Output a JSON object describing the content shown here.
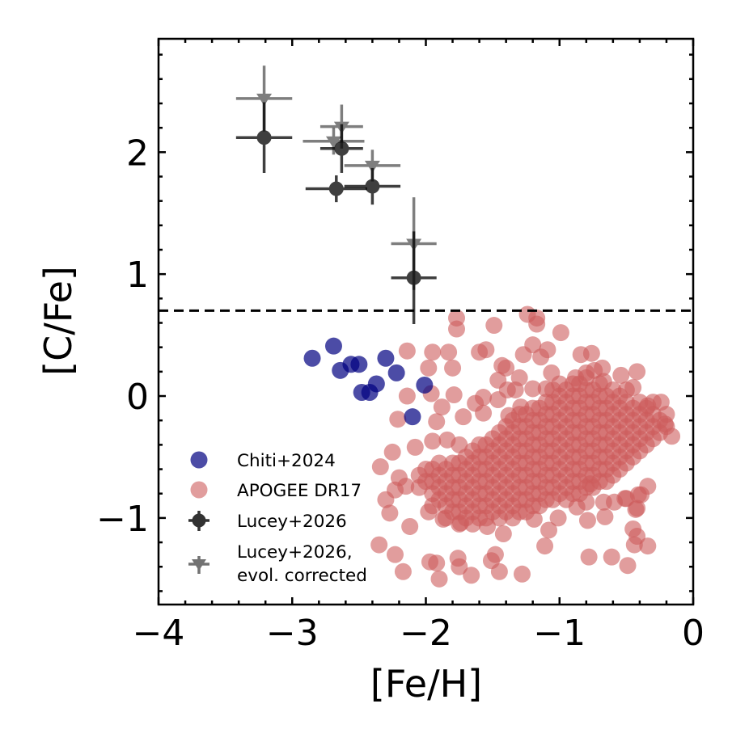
{
  "chart_data": {
    "type": "scatter",
    "title": "",
    "xlabel": "[Fe/H]",
    "ylabel": "[C/Fe]",
    "xlim": [
      -4,
      0
    ],
    "ylim": [
      -1.71,
      2.93
    ],
    "x_ticks": [
      -4,
      -3,
      -2,
      -1,
      0
    ],
    "x_tick_labels": [
      "−4",
      "−3",
      "−2",
      "−1",
      "0"
    ],
    "y_ticks": [
      -1,
      0,
      1,
      2
    ],
    "y_tick_labels": [
      "−1",
      "0",
      "1",
      "2"
    ],
    "minor_tick_step": 0.2,
    "grid": false,
    "reference_line": {
      "y": 0.7,
      "style": "dashed",
      "color": "#000000"
    },
    "legend_position": "lower-left",
    "series": [
      {
        "name": "Chiti+2024",
        "kind": "scatter",
        "color": "#000080",
        "opacity": 0.7,
        "points": [
          [
            -2.85,
            0.31
          ],
          [
            -2.69,
            0.41
          ],
          [
            -2.64,
            0.21
          ],
          [
            -2.56,
            0.26
          ],
          [
            -2.5,
            0.26
          ],
          [
            -2.3,
            0.31
          ],
          [
            -2.22,
            0.19
          ],
          [
            -2.37,
            0.1
          ],
          [
            -2.48,
            0.03
          ],
          [
            -2.42,
            0.03
          ],
          [
            -2.01,
            0.09
          ],
          [
            -2.1,
            -0.17
          ]
        ]
      },
      {
        "name": "APOGEE DR17",
        "kind": "scatter",
        "color": "#cd5c5c",
        "opacity": 0.6,
        "points": [
          [
            -1.77,
            0.64
          ],
          [
            -1.77,
            0.55
          ],
          [
            -1.49,
            0.58
          ],
          [
            -1.24,
            0.67
          ],
          [
            -1.17,
            0.64
          ],
          [
            -1.17,
            0.59
          ],
          [
            -2.14,
            0.37
          ],
          [
            -1.95,
            0.36
          ],
          [
            -1.83,
            0.36
          ],
          [
            -1.6,
            0.36
          ],
          [
            -1.55,
            0.38
          ],
          [
            -1.98,
            0.23
          ],
          [
            -1.8,
            0.23
          ],
          [
            -1.43,
            0.25
          ],
          [
            -1.4,
            0.23
          ],
          [
            -1.27,
            0.34
          ],
          [
            -1.2,
            0.42
          ],
          [
            -1.14,
            0.32
          ],
          [
            -1.46,
            0.13
          ],
          [
            -1.3,
            0.15
          ],
          [
            -2.14,
            0.0
          ],
          [
            -1.96,
            0.02
          ],
          [
            -1.79,
            0.01
          ],
          [
            -1.88,
            -0.09
          ],
          [
            -1.63,
            -0.06
          ],
          [
            -1.57,
            -0.01
          ],
          [
            -1.39,
            0.05
          ],
          [
            -1.33,
            0.05
          ],
          [
            -1.2,
            0.06
          ],
          [
            -1.46,
            -0.03
          ],
          [
            -1.57,
            -0.14
          ],
          [
            -1.72,
            -0.17
          ],
          [
            -2.21,
            -0.19
          ],
          [
            -1.92,
            -0.21
          ],
          [
            -1.38,
            -0.16
          ],
          [
            -1.29,
            -0.09
          ],
          [
            -0.99,
            0.52
          ],
          [
            -1.09,
            0.38
          ],
          [
            -0.84,
            0.34
          ],
          [
            -0.76,
            0.35
          ],
          [
            -0.68,
            0.23
          ],
          [
            -0.74,
            0.21
          ],
          [
            -0.8,
            0.19
          ],
          [
            -0.42,
            0.2
          ],
          [
            -0.54,
            0.17
          ],
          [
            -0.67,
            0.12
          ],
          [
            -0.88,
            0.15
          ],
          [
            -1.06,
            0.19
          ],
          [
            -0.45,
            0.07
          ],
          [
            -0.24,
            -0.05
          ],
          [
            -0.34,
            -0.08
          ],
          [
            -1.1,
            0.06
          ],
          [
            -2.25,
            -0.46
          ],
          [
            -2.34,
            -0.58
          ],
          [
            -2.2,
            -0.67
          ],
          [
            -2.15,
            -0.74
          ],
          [
            -2.23,
            -0.77
          ],
          [
            -2.3,
            -0.85
          ],
          [
            -2.27,
            -0.96
          ],
          [
            -2.12,
            -1.07
          ],
          [
            -2.35,
            -1.22
          ],
          [
            -2.23,
            -1.3
          ],
          [
            -2.17,
            -1.44
          ],
          [
            -1.97,
            -1.36
          ],
          [
            -1.92,
            -1.37
          ],
          [
            -1.9,
            -1.5
          ],
          [
            -1.76,
            -1.33
          ],
          [
            -1.75,
            -1.4
          ],
          [
            -1.66,
            -1.47
          ],
          [
            -1.51,
            -1.35
          ],
          [
            -1.48,
            -1.3
          ],
          [
            -1.45,
            -1.44
          ],
          [
            -1.28,
            -1.46
          ],
          [
            -1.42,
            -1.13
          ],
          [
            -1.54,
            -1.07
          ],
          [
            -1.74,
            -1.04
          ],
          [
            -1.87,
            -1.01
          ],
          [
            -1.98,
            -0.95
          ],
          [
            -2.08,
            -0.42
          ],
          [
            -1.95,
            -0.37
          ],
          [
            -1.84,
            -0.36
          ],
          [
            -1.75,
            -0.4
          ],
          [
            -1.19,
            -1.01
          ],
          [
            -1.08,
            -1.1
          ],
          [
            -1.11,
            -1.23
          ],
          [
            -1.01,
            -1.0
          ],
          [
            -0.87,
            -0.91
          ],
          [
            -0.8,
            -0.87
          ],
          [
            -0.79,
            -1.02
          ],
          [
            -0.67,
            -0.87
          ],
          [
            -0.66,
            -0.99
          ],
          [
            -0.59,
            -0.87
          ],
          [
            -0.5,
            -0.84
          ],
          [
            -0.42,
            -0.92
          ],
          [
            -0.39,
            -0.81
          ],
          [
            -0.34,
            -0.74
          ],
          [
            -0.45,
            -1.09
          ],
          [
            -0.42,
            -1.15
          ],
          [
            -0.44,
            -1.22
          ],
          [
            -0.34,
            -1.23
          ],
          [
            -0.78,
            -1.32
          ],
          [
            -0.61,
            -1.32
          ],
          [
            -0.49,
            -1.39
          ],
          [
            -0.77,
            -0.72
          ],
          [
            -0.16,
            -0.33
          ],
          [
            -0.21,
            -0.23
          ],
          [
            -0.41,
            -0.81
          ],
          [
            -0.43,
            -0.93
          ],
          [
            -0.51,
            -0.84
          ]
        ],
        "dense_core": [
          {
            "x": -2.05,
            "y": [
              -0.75,
              -0.65
            ]
          },
          {
            "x": -1.95,
            "y": [
              -0.9,
              -0.8,
              -0.7,
              -0.6
            ]
          },
          {
            "x": -1.85,
            "y": [
              -1.0,
              -0.9,
              -0.8,
              -0.7,
              -0.6
            ]
          },
          {
            "x": -1.75,
            "y": [
              -1.05,
              -0.95,
              -0.85,
              -0.75,
              -0.65,
              -0.55
            ]
          },
          {
            "x": -1.65,
            "y": [
              -1.05,
              -0.95,
              -0.85,
              -0.75,
              -0.65,
              -0.55,
              -0.45
            ]
          },
          {
            "x": -1.55,
            "y": [
              -1.0,
              -0.9,
              -0.8,
              -0.7,
              -0.6,
              -0.5,
              -0.4
            ]
          },
          {
            "x": -1.45,
            "y": [
              -1.0,
              -0.9,
              -0.8,
              -0.7,
              -0.6,
              -0.5,
              -0.4,
              -0.3
            ]
          },
          {
            "x": -1.35,
            "y": [
              -1.0,
              -0.9,
              -0.8,
              -0.7,
              -0.6,
              -0.5,
              -0.4,
              -0.3,
              -0.2
            ]
          },
          {
            "x": -1.25,
            "y": [
              -0.95,
              -0.85,
              -0.75,
              -0.65,
              -0.55,
              -0.45,
              -0.35,
              -0.25,
              -0.15
            ]
          },
          {
            "x": -1.15,
            "y": [
              -0.9,
              -0.8,
              -0.7,
              -0.6,
              -0.5,
              -0.4,
              -0.3,
              -0.2,
              -0.1
            ]
          },
          {
            "x": -1.05,
            "y": [
              -0.85,
              -0.75,
              -0.65,
              -0.55,
              -0.45,
              -0.35,
              -0.25,
              -0.15,
              -0.05,
              0.05
            ]
          },
          {
            "x": -0.95,
            "y": [
              -0.85,
              -0.75,
              -0.65,
              -0.55,
              -0.45,
              -0.35,
              -0.25,
              -0.15,
              -0.05,
              0.05
            ]
          },
          {
            "x": -0.85,
            "y": [
              -0.8,
              -0.7,
              -0.6,
              -0.5,
              -0.4,
              -0.3,
              -0.2,
              -0.1,
              0.0,
              0.1
            ]
          },
          {
            "x": -0.75,
            "y": [
              -0.75,
              -0.65,
              -0.55,
              -0.45,
              -0.35,
              -0.25,
              -0.15,
              -0.05,
              0.05
            ]
          },
          {
            "x": -0.65,
            "y": [
              -0.7,
              -0.6,
              -0.5,
              -0.4,
              -0.3,
              -0.2,
              -0.1,
              0.0
            ]
          },
          {
            "x": -0.55,
            "y": [
              -0.6,
              -0.5,
              -0.4,
              -0.3,
              -0.2,
              -0.1,
              0.0
            ]
          },
          {
            "x": -0.45,
            "y": [
              -0.5,
              -0.4,
              -0.3,
              -0.2,
              -0.1
            ]
          },
          {
            "x": -0.35,
            "y": [
              -0.4,
              -0.3,
              -0.2,
              -0.1
            ]
          },
          {
            "x": -0.25,
            "y": [
              -0.3,
              -0.2
            ]
          }
        ]
      },
      {
        "name": "Lucey+2026",
        "kind": "errorbar",
        "marker": "circle",
        "color": "#000000",
        "opacity": 0.75,
        "points": [
          {
            "x": -3.21,
            "y": 2.12,
            "xerr": 0.21,
            "yerr": 0.29
          },
          {
            "x": -2.63,
            "y": 2.03,
            "xerr": 0.16,
            "yerr": 0.2
          },
          {
            "x": -2.67,
            "y": 1.7,
            "xerr": 0.23,
            "yerr": 0.11
          },
          {
            "x": -2.4,
            "y": 1.72,
            "xerr": 0.21,
            "yerr": 0.15
          },
          {
            "x": -2.09,
            "y": 0.97,
            "xerr": 0.17,
            "yerr": 0.38
          }
        ]
      },
      {
        "name": "Lucey+2026,\nevol. corrected",
        "kind": "errorbar",
        "marker": "triangle-down",
        "color": "#000000",
        "opacity": 0.5,
        "points": [
          {
            "x": -3.21,
            "y": 2.44,
            "xerr": 0.21,
            "yerr": 0.27
          },
          {
            "x": -2.63,
            "y": 2.21,
            "xerr": 0.16,
            "yerr": 0.18
          },
          {
            "x": -2.69,
            "y": 2.09,
            "xerr": 0.23,
            "yerr": 0.11
          },
          {
            "x": -2.4,
            "y": 1.89,
            "xerr": 0.21,
            "yerr": 0.13
          },
          {
            "x": -2.09,
            "y": 1.25,
            "xerr": 0.17,
            "yerr": 0.38
          }
        ]
      }
    ],
    "legend": {
      "entries": [
        "Chiti+2024",
        "APOGEE DR17",
        "Lucey+2026"
      ],
      "evol_line1": "Lucey+2026,",
      "evol_line2": "evol. corrected"
    }
  }
}
